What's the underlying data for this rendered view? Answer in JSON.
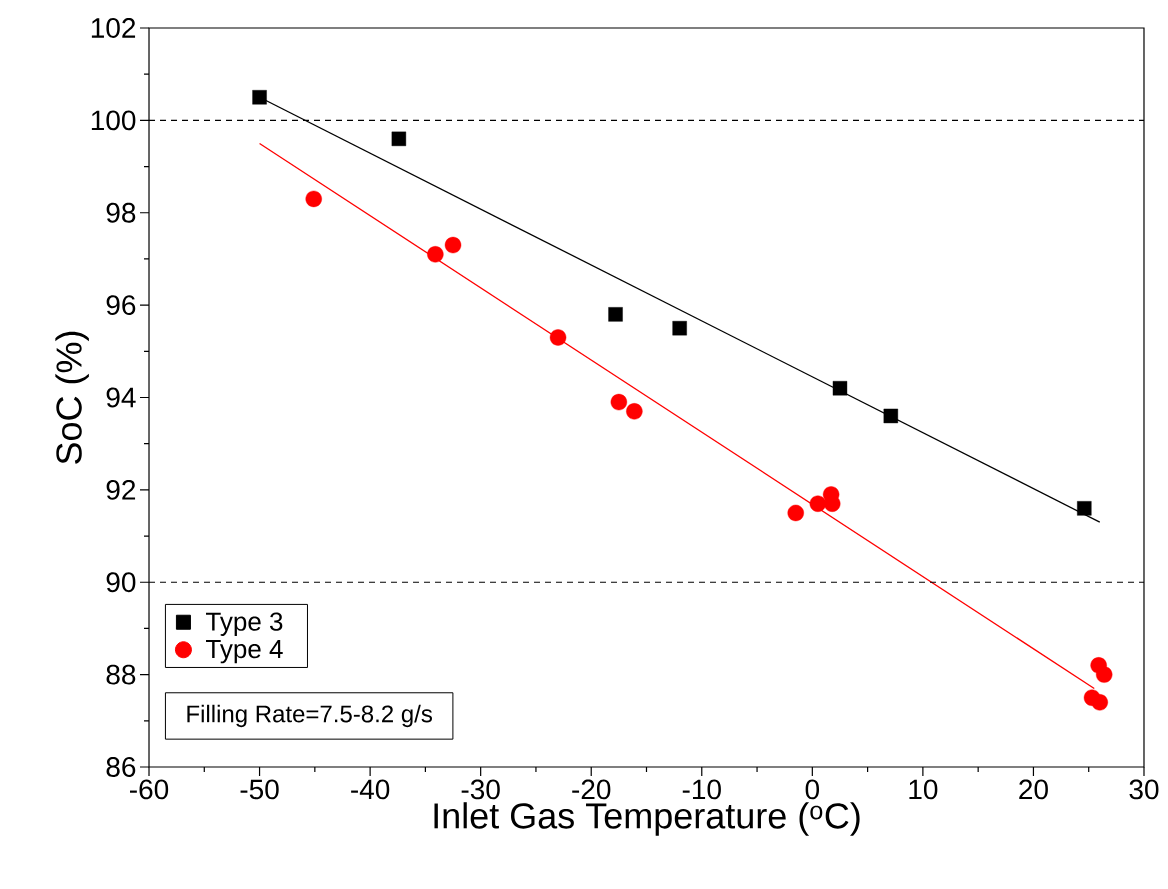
{
  "chart_data": {
    "type": "scatter",
    "xlabel": "Inlet Gas Temperature ($^{o}$C)",
    "ylabel": "SoC (%)",
    "xlim": [
      -60,
      30
    ],
    "xticks": [
      -60,
      -50,
      -40,
      -30,
      -20,
      -10,
      0,
      10,
      20,
      30
    ],
    "ylim": [
      86,
      102
    ],
    "yticks": [
      86,
      88,
      90,
      92,
      94,
      96,
      98,
      100,
      102
    ],
    "series": [
      {
        "name": "Type 3",
        "color": "#000000",
        "marker": "square",
        "x": [
          -50,
          -37.4,
          -17.8,
          -12.0,
          2.5,
          7.1,
          24.6
        ],
        "values": [
          100.5,
          99.6,
          95.8,
          95.5,
          94.2,
          93.6,
          91.6
        ]
      },
      {
        "name": "Type 4",
        "color": "#ff0000",
        "marker": "circle",
        "x": [
          -45.1,
          -34.1,
          -32.5,
          -23.0,
          -17.5,
          -16.1,
          -1.5,
          0.5,
          1.7,
          1.8,
          25.3,
          26.0,
          25.9,
          26.4
        ],
        "values": [
          98.3,
          97.1,
          97.3,
          95.3,
          93.9,
          93.7,
          91.5,
          91.7,
          91.9,
          91.7,
          87.5,
          87.4,
          88.2,
          88.0
        ]
      },
      {
        "type": "line",
        "color": "#000000",
        "x": [
          -50,
          26
        ],
        "values": [
          100.5,
          91.3
        ]
      },
      {
        "type": "line",
        "color": "#ff0000",
        "x": [
          -50,
          25.5
        ],
        "values": [
          99.5,
          87.7
        ]
      }
    ],
    "ref_lines": [
      {
        "axis": "y",
        "value": 100,
        "line_style": "dashed",
        "color": "#000000"
      },
      {
        "axis": "y",
        "value": 90,
        "line_style": "dashed",
        "color": "#000000"
      }
    ],
    "legend": "bottom left",
    "annotations": [
      "Filling Rate=7.5-8.2 g/s"
    ]
  }
}
